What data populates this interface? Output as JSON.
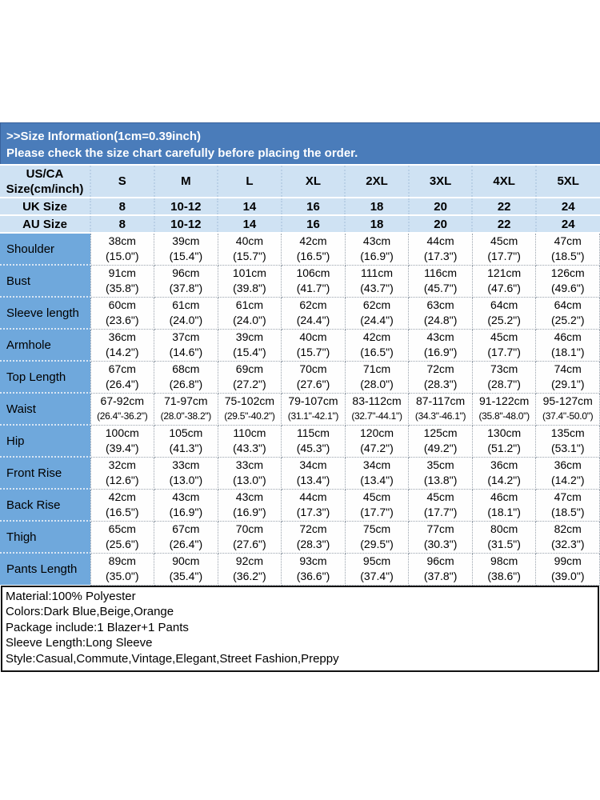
{
  "banner": {
    "line1": ">>Size Information(1cm=0.39inch)",
    "line2": "Please check the size chart carefully before placing the order.",
    "bg_color": "#4a7cba",
    "text_color": "#ffffff"
  },
  "size_table": {
    "corner": {
      "line1": "US/CA",
      "line2": "Size(cm/inch)"
    },
    "size_headers": [
      "S",
      "M",
      "L",
      "XL",
      "2XL",
      "3XL",
      "4XL",
      "5XL"
    ],
    "uk_row": {
      "label": "UK Size",
      "values": [
        "8",
        "10-12",
        "14",
        "16",
        "18",
        "20",
        "22",
        "24"
      ]
    },
    "au_row": {
      "label": "AU Size",
      "values": [
        "8",
        "10-12",
        "14",
        "16",
        "18",
        "20",
        "22",
        "24"
      ]
    },
    "rows": [
      {
        "label": "Shoulder",
        "cells": [
          [
            "38cm",
            "(15.0\")"
          ],
          [
            "39cm",
            "(15.4\")"
          ],
          [
            "40cm",
            "(15.7\")"
          ],
          [
            "42cm",
            "(16.5\")"
          ],
          [
            "43cm",
            "(16.9\")"
          ],
          [
            "44cm",
            "(17.3\")"
          ],
          [
            "45cm",
            "(17.7\")"
          ],
          [
            "47cm",
            "(18.5\")"
          ]
        ]
      },
      {
        "label": "Bust",
        "cells": [
          [
            "91cm",
            "(35.8\")"
          ],
          [
            "96cm",
            "(37.8\")"
          ],
          [
            "101cm",
            "(39.8\")"
          ],
          [
            "106cm",
            "(41.7\")"
          ],
          [
            "111cm",
            "(43.7\")"
          ],
          [
            "116cm",
            "(45.7\")"
          ],
          [
            "121cm",
            "(47.6\")"
          ],
          [
            "126cm",
            "(49.6\")"
          ]
        ]
      },
      {
        "label": "Sleeve length",
        "cells": [
          [
            "60cm",
            "(23.6\")"
          ],
          [
            "61cm",
            "(24.0\")"
          ],
          [
            "61cm",
            "(24.0\")"
          ],
          [
            "62cm",
            "(24.4\")"
          ],
          [
            "62cm",
            "(24.4\")"
          ],
          [
            "63cm",
            "(24.8\")"
          ],
          [
            "64cm",
            "(25.2\")"
          ],
          [
            "64cm",
            "(25.2\")"
          ]
        ]
      },
      {
        "label": "Armhole",
        "cells": [
          [
            "36cm",
            "(14.2\")"
          ],
          [
            "37cm",
            "(14.6\")"
          ],
          [
            "39cm",
            "(15.4\")"
          ],
          [
            "40cm",
            "(15.7\")"
          ],
          [
            "42cm",
            "(16.5\")"
          ],
          [
            "43cm",
            "(16.9\")"
          ],
          [
            "45cm",
            "(17.7\")"
          ],
          [
            "46cm",
            "(18.1\")"
          ]
        ]
      },
      {
        "label": "Top Length",
        "cells": [
          [
            "67cm",
            "(26.4\")"
          ],
          [
            "68cm",
            "(26.8\")"
          ],
          [
            "69cm",
            "(27.2\")"
          ],
          [
            "70cm",
            "(27.6\")"
          ],
          [
            "71cm",
            "(28.0\")"
          ],
          [
            "72cm",
            "(28.3\")"
          ],
          [
            "73cm",
            "(28.7\")"
          ],
          [
            "74cm",
            "(29.1\")"
          ]
        ]
      },
      {
        "label": "Waist",
        "cells": [
          [
            "67-92cm",
            "(26.4\"-36.2\")"
          ],
          [
            "71-97cm",
            "(28.0\"-38.2\")"
          ],
          [
            "75-102cm",
            "(29.5\"-40.2\")"
          ],
          [
            "79-107cm",
            "(31.1\"-42.1\")"
          ],
          [
            "83-112cm",
            "(32.7\"-44.1\")"
          ],
          [
            "87-117cm",
            "(34.3\"-46.1\")"
          ],
          [
            "91-122cm",
            "(35.8\"-48.0\")"
          ],
          [
            "95-127cm",
            "(37.4\"-50.0\")"
          ]
        ]
      },
      {
        "label": "Hip",
        "cells": [
          [
            "100cm",
            "(39.4\")"
          ],
          [
            "105cm",
            "(41.3\")"
          ],
          [
            "110cm",
            "(43.3\")"
          ],
          [
            "115cm",
            "(45.3\")"
          ],
          [
            "120cm",
            "(47.2\")"
          ],
          [
            "125cm",
            "(49.2\")"
          ],
          [
            "130cm",
            "(51.2\")"
          ],
          [
            "135cm",
            "(53.1\")"
          ]
        ]
      },
      {
        "label": "Front Rise",
        "cells": [
          [
            "32cm",
            "(12.6\")"
          ],
          [
            "33cm",
            "(13.0\")"
          ],
          [
            "33cm",
            "(13.0\")"
          ],
          [
            "34cm",
            "(13.4\")"
          ],
          [
            "34cm",
            "(13.4\")"
          ],
          [
            "35cm",
            "(13.8\")"
          ],
          [
            "36cm",
            "(14.2\")"
          ],
          [
            "36cm",
            "(14.2\")"
          ]
        ]
      },
      {
        "label": "Back Rise",
        "cells": [
          [
            "42cm",
            "(16.5\")"
          ],
          [
            "43cm",
            "(16.9\")"
          ],
          [
            "43cm",
            "(16.9\")"
          ],
          [
            "44cm",
            "(17.3\")"
          ],
          [
            "45cm",
            "(17.7\")"
          ],
          [
            "45cm",
            "(17.7\")"
          ],
          [
            "46cm",
            "(18.1\")"
          ],
          [
            "47cm",
            "(18.5\")"
          ]
        ]
      },
      {
        "label": "Thigh",
        "cells": [
          [
            "65cm",
            "(25.6\")"
          ],
          [
            "67cm",
            "(26.4\")"
          ],
          [
            "70cm",
            "(27.6\")"
          ],
          [
            "72cm",
            "(28.3\")"
          ],
          [
            "75cm",
            "(29.5\")"
          ],
          [
            "77cm",
            "(30.3\")"
          ],
          [
            "80cm",
            "(31.5\")"
          ],
          [
            "82cm",
            "(32.3\")"
          ]
        ]
      },
      {
        "label": "Pants Length",
        "cells": [
          [
            "89cm",
            "(35.0\")"
          ],
          [
            "90cm",
            "(35.4\")"
          ],
          [
            "92cm",
            "(36.2\")"
          ],
          [
            "93cm",
            "(36.6\")"
          ],
          [
            "95cm",
            "(37.4\")"
          ],
          [
            "96cm",
            "(37.8\")"
          ],
          [
            "98cm",
            "(38.6\")"
          ],
          [
            "99cm",
            "(39.0\")"
          ]
        ]
      }
    ]
  },
  "details": {
    "lines": [
      "Material:100% Polyester",
      "Colors:Dark Blue,Beige,Orange",
      "Package include:1 Blazer+1 Pants",
      "Sleeve Length:Long Sleeve",
      "Style:Casual,Commute,Vintage,Elegant,Street Fashion,Preppy"
    ]
  }
}
